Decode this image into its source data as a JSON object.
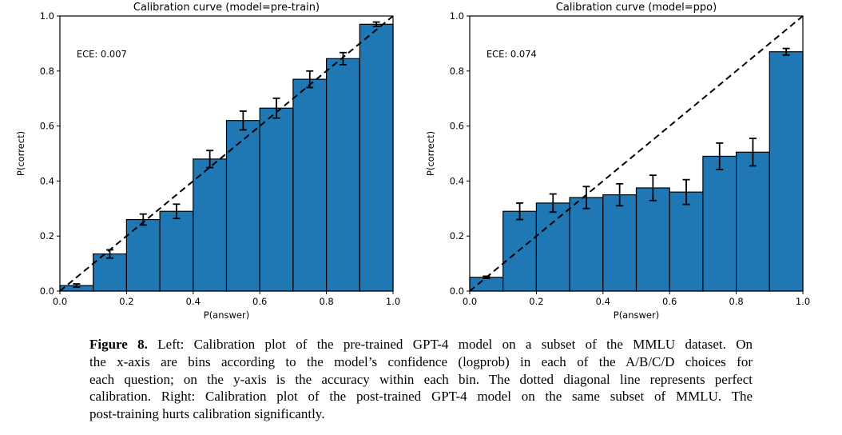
{
  "page": {
    "background": "#ffffff"
  },
  "caption": {
    "label": "Figure 8.",
    "line1_rest": " Left: Calibration plot of the pre-trained GPT-4 model on a subset of the MMLU dataset. On",
    "lines": [
      "the x-axis are bins according to the model’s confidence (logprob) in each of the A/B/C/D choices for",
      "each question; on the y-axis is the accuracy within each bin. The dotted diagonal line represents perfect",
      "calibration. Right: Calibration plot of the post-trained GPT-4 model on the same subset of MMLU. The",
      "post-training hurts calibration significantly."
    ]
  },
  "chart_data": [
    {
      "type": "bar",
      "title": "Calibration curve (model=pre-train)",
      "annotation": "ECE: 0.007",
      "annotation_pos": [
        0.05,
        0.85
      ],
      "xlabel": "P(answer)",
      "ylabel": "P(correct)",
      "xlim": [
        0.0,
        1.0
      ],
      "ylim": [
        0.0,
        1.0
      ],
      "xticks": [
        "0.0",
        "0.2",
        "0.4",
        "0.6",
        "0.8",
        "1.0"
      ],
      "yticks": [
        "0.0",
        "0.2",
        "0.4",
        "0.6",
        "0.8",
        "1.0"
      ],
      "grid": false,
      "legend": null,
      "bin_width": 0.1,
      "bin_starts": [
        0.0,
        0.1,
        0.2,
        0.3,
        0.4,
        0.5,
        0.6,
        0.7,
        0.8,
        0.9
      ],
      "values": [
        0.02,
        0.135,
        0.26,
        0.29,
        0.48,
        0.62,
        0.665,
        0.77,
        0.845,
        0.97
      ],
      "errors": [
        0.006,
        0.015,
        0.02,
        0.026,
        0.031,
        0.034,
        0.036,
        0.03,
        0.022,
        0.008
      ],
      "diagonal": {
        "style": "dashed",
        "from": [
          0,
          0
        ],
        "to": [
          1,
          1
        ],
        "meaning": "perfect calibration"
      },
      "bar_color": "#1f77b4",
      "bar_edge_color": "#000000",
      "error_color": "#000000"
    },
    {
      "type": "bar",
      "title": "Calibration curve (model=ppo)",
      "annotation": "ECE: 0.074",
      "annotation_pos": [
        0.05,
        0.85
      ],
      "xlabel": "P(answer)",
      "ylabel": "P(correct)",
      "xlim": [
        0.0,
        1.0
      ],
      "ylim": [
        0.0,
        1.0
      ],
      "xticks": [
        "0.0",
        "0.2",
        "0.4",
        "0.6",
        "0.8",
        "1.0"
      ],
      "yticks": [
        "0.0",
        "0.2",
        "0.4",
        "0.6",
        "0.8",
        "1.0"
      ],
      "grid": false,
      "legend": null,
      "bin_width": 0.1,
      "bin_starts": [
        0.0,
        0.1,
        0.2,
        0.3,
        0.4,
        0.5,
        0.6,
        0.7,
        0.8,
        0.9
      ],
      "values": [
        0.05,
        0.29,
        0.32,
        0.34,
        0.35,
        0.375,
        0.36,
        0.49,
        0.505,
        0.87
      ],
      "errors": [
        0.004,
        0.03,
        0.033,
        0.04,
        0.04,
        0.046,
        0.045,
        0.048,
        0.05,
        0.012
      ],
      "diagonal": {
        "style": "dashed",
        "from": [
          0,
          0
        ],
        "to": [
          1,
          1
        ],
        "meaning": "perfect calibration"
      },
      "bar_color": "#1f77b4",
      "bar_edge_color": "#000000",
      "error_color": "#000000"
    }
  ]
}
